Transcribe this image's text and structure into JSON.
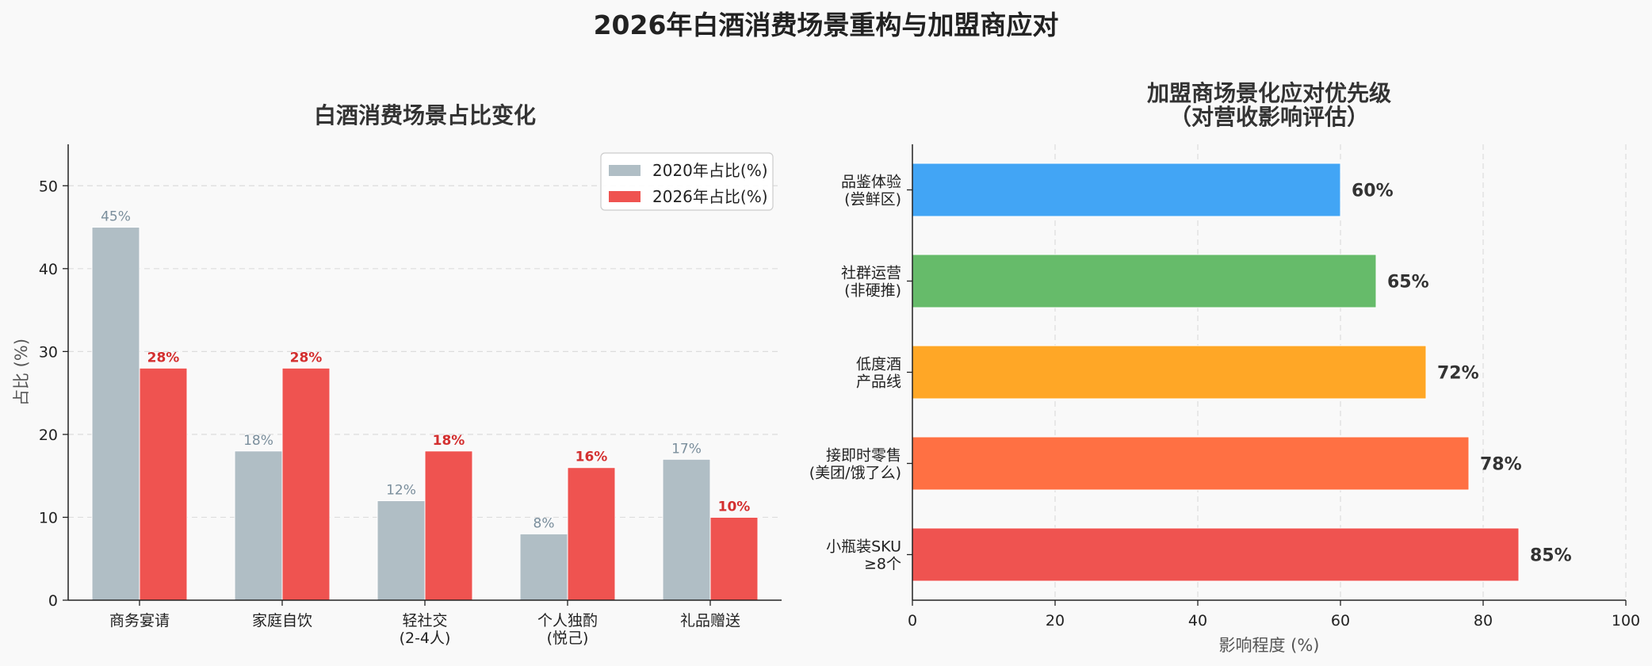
{
  "title": "2026年白酒消费场景重构与加盟商应对",
  "chart_data": [
    {
      "type": "bar",
      "title": "白酒消费场景占比变化",
      "xlabel": "",
      "ylabel": "占比 (%)",
      "ylim": [
        0,
        55
      ],
      "yticks": [
        0,
        10,
        20,
        30,
        40,
        50
      ],
      "grid": "y",
      "legend": "top-right",
      "categories": [
        [
          "商务宴请"
        ],
        [
          "家庭自饮"
        ],
        [
          "轻社交",
          "(2-4人)"
        ],
        [
          "个人独酌",
          "(悦己)"
        ],
        [
          "礼品赠送"
        ]
      ],
      "series": [
        {
          "name": "2020年占比(%)",
          "color": "#b0bec5",
          "values": [
            45,
            18,
            12,
            8,
            17
          ],
          "labels": [
            "45%",
            "18%",
            "12%",
            "8%",
            "17%"
          ]
        },
        {
          "name": "2026年占比(%)",
          "color": "#ef5350",
          "values": [
            28,
            28,
            18,
            16,
            10
          ],
          "labels": [
            "28%",
            "28%",
            "18%",
            "16%",
            "10%"
          ]
        }
      ]
    },
    {
      "type": "bar",
      "orientation": "horizontal",
      "title": [
        "加盟商场景化应对优先级",
        "（对营收影响评估）"
      ],
      "xlabel": "影响程度 (%)",
      "ylabel": "",
      "xlim": [
        0,
        100
      ],
      "xticks": [
        0,
        20,
        40,
        60,
        80,
        100
      ],
      "grid": "x",
      "categories": [
        [
          "小瓶装SKU",
          "≥8个"
        ],
        [
          "接即时零售",
          "(美团/饿了么)"
        ],
        [
          "低度酒",
          "产品线"
        ],
        [
          "社群运营",
          "(非硬推)"
        ],
        [
          "品鉴体验",
          "(尝鲜区)"
        ]
      ],
      "values": [
        85,
        78,
        72,
        65,
        60
      ],
      "labels": [
        "85%",
        "78%",
        "72%",
        "65%",
        "60%"
      ],
      "colors": [
        "#ef5350",
        "#ff7043",
        "#ffa726",
        "#66bb6a",
        "#42a5f5"
      ]
    }
  ]
}
